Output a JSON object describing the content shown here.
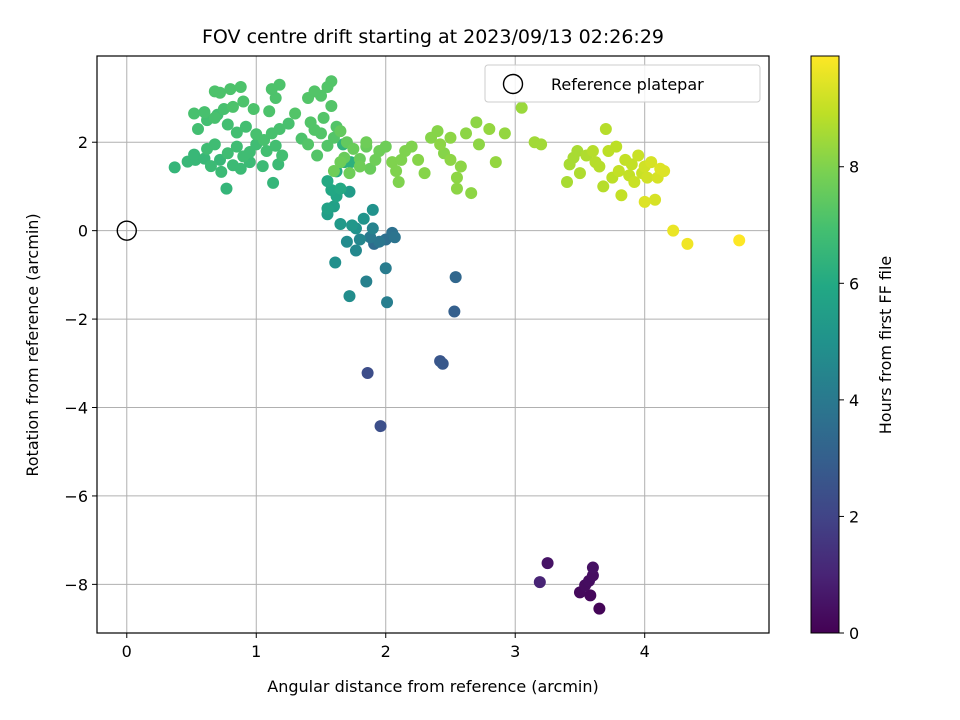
{
  "chart_data": {
    "type": "scatter",
    "title": "FOV centre drift starting at 2023/09/13 02:26:29",
    "xlabel": "Angular distance from reference (arcmin)",
    "ylabel": "Rotation from reference (arcmin)",
    "xlim": [
      -0.23,
      4.96
    ],
    "ylim": [
      -9.1,
      3.95
    ],
    "xticks": [
      0,
      1,
      2,
      3,
      4
    ],
    "yticks": [
      -8,
      -6,
      -4,
      -2,
      0,
      2
    ],
    "grid": true,
    "legend": {
      "placement": "top-right",
      "entries": [
        "Reference platepar"
      ]
    },
    "reference_point": {
      "x": 0,
      "y": 0,
      "label": "Reference platepar"
    },
    "colorbar": {
      "label": "Hours from first FF file",
      "range": [
        0,
        9.9
      ],
      "ticks": [
        0,
        2,
        4,
        6,
        8
      ],
      "colormap": "viridis"
    },
    "points": [
      [
        3.65,
        -8.55,
        0.1
      ],
      [
        3.58,
        -8.25,
        0.2
      ],
      [
        3.5,
        -8.18,
        0.25
      ],
      [
        3.54,
        -8.02,
        0.3
      ],
      [
        3.57,
        -7.92,
        0.35
      ],
      [
        3.6,
        -7.8,
        0.4
      ],
      [
        3.6,
        -7.62,
        0.45
      ],
      [
        3.25,
        -7.52,
        0.5
      ],
      [
        3.19,
        -7.95,
        1.0
      ],
      [
        1.86,
        -3.22,
        2.3
      ],
      [
        1.96,
        -4.42,
        2.4
      ],
      [
        2.42,
        -2.95,
        2.6
      ],
      [
        2.44,
        -3.01,
        2.7
      ],
      [
        2.53,
        -1.83,
        3.0
      ],
      [
        2.54,
        -1.05,
        3.3
      ],
      [
        1.91,
        -0.3,
        3.5
      ],
      [
        2.0,
        -0.2,
        3.6
      ],
      [
        2.05,
        -0.05,
        3.7
      ],
      [
        2.07,
        -0.15,
        3.8
      ],
      [
        1.95,
        -0.25,
        3.9
      ],
      [
        1.88,
        -0.15,
        4.0
      ],
      [
        2.0,
        -0.85,
        4.1
      ],
      [
        2.01,
        -1.62,
        4.2
      ],
      [
        1.85,
        -1.15,
        4.3
      ],
      [
        1.9,
        0.05,
        4.4
      ],
      [
        1.8,
        -0.2,
        4.5
      ],
      [
        1.77,
        -0.45,
        4.6
      ],
      [
        1.7,
        -0.25,
        4.7
      ],
      [
        1.72,
        -1.48,
        4.8
      ],
      [
        1.61,
        -0.72,
        4.9
      ],
      [
        1.9,
        0.47,
        5.0
      ],
      [
        1.77,
        0.05,
        5.0
      ],
      [
        1.83,
        0.27,
        5.1
      ],
      [
        1.74,
        0.12,
        5.2
      ],
      [
        1.65,
        0.15,
        5.3
      ],
      [
        1.72,
        0.88,
        5.4
      ],
      [
        1.55,
        0.37,
        5.5
      ],
      [
        1.6,
        0.55,
        5.6
      ],
      [
        1.55,
        0.5,
        5.7
      ],
      [
        1.62,
        0.78,
        5.8
      ],
      [
        1.58,
        0.92,
        5.9
      ],
      [
        1.55,
        1.12,
        6.0
      ],
      [
        1.65,
        0.95,
        6.0
      ],
      [
        1.62,
        1.34,
        6.1
      ],
      [
        1.68,
        1.55,
        6.2
      ],
      [
        1.73,
        1.55,
        6.3
      ],
      [
        1.67,
        1.95,
        6.4
      ],
      [
        0.77,
        0.95,
        6.5
      ],
      [
        1.13,
        1.08,
        6.5
      ],
      [
        0.37,
        1.43,
        6.5
      ],
      [
        0.47,
        1.56,
        6.6
      ],
      [
        0.53,
        1.6,
        6.6
      ],
      [
        0.52,
        1.72,
        6.6
      ],
      [
        0.6,
        1.63,
        6.6
      ],
      [
        0.72,
        1.6,
        6.6
      ],
      [
        0.73,
        1.33,
        6.7
      ],
      [
        0.65,
        1.46,
        6.7
      ],
      [
        0.82,
        1.48,
        6.7
      ],
      [
        0.88,
        1.4,
        6.7
      ],
      [
        0.95,
        1.55,
        6.7
      ],
      [
        1.05,
        1.46,
        6.7
      ],
      [
        1.17,
        1.5,
        6.7
      ],
      [
        0.62,
        1.85,
        6.8
      ],
      [
        0.68,
        1.95,
        6.8
      ],
      [
        0.78,
        1.75,
        6.8
      ],
      [
        0.85,
        1.9,
        6.8
      ],
      [
        0.9,
        1.68,
        6.8
      ],
      [
        0.95,
        1.78,
        6.8
      ],
      [
        1.0,
        1.95,
        6.8
      ],
      [
        1.08,
        1.8,
        6.9
      ],
      [
        1.15,
        1.92,
        6.9
      ],
      [
        1.2,
        1.7,
        6.9
      ],
      [
        0.55,
        2.3,
        6.9
      ],
      [
        0.62,
        2.5,
        6.9
      ],
      [
        0.7,
        2.62,
        6.9
      ],
      [
        0.78,
        2.4,
        6.9
      ],
      [
        0.85,
        2.22,
        6.9
      ],
      [
        0.92,
        2.35,
        6.9
      ],
      [
        1.0,
        2.18,
        7.0
      ],
      [
        1.06,
        2.05,
        7.0
      ],
      [
        1.12,
        2.2,
        7.0
      ],
      [
        1.18,
        2.3,
        7.0
      ],
      [
        1.25,
        2.42,
        7.0
      ],
      [
        0.52,
        2.65,
        7.0
      ],
      [
        0.6,
        2.68,
        7.0
      ],
      [
        0.68,
        2.55,
        7.0
      ],
      [
        0.75,
        2.75,
        7.0
      ],
      [
        0.82,
        2.8,
        7.1
      ],
      [
        0.9,
        2.92,
        7.1
      ],
      [
        0.98,
        2.75,
        7.1
      ],
      [
        1.1,
        2.7,
        7.1
      ],
      [
        1.15,
        3.0,
        7.1
      ],
      [
        1.18,
        3.3,
        7.1
      ],
      [
        0.68,
        3.15,
        7.1
      ],
      [
        0.72,
        3.12,
        7.1
      ],
      [
        0.8,
        3.2,
        7.1
      ],
      [
        0.88,
        3.25,
        7.1
      ],
      [
        1.12,
        3.2,
        7.1
      ],
      [
        1.35,
        2.08,
        7.1
      ],
      [
        1.4,
        1.95,
        7.2
      ],
      [
        1.45,
        2.28,
        7.2
      ],
      [
        1.5,
        2.2,
        7.2
      ],
      [
        1.55,
        1.92,
        7.2
      ],
      [
        1.6,
        2.1,
        7.2
      ],
      [
        1.47,
        1.7,
        7.2
      ],
      [
        1.3,
        2.65,
        7.2
      ],
      [
        1.42,
        2.45,
        7.2
      ],
      [
        1.52,
        2.55,
        7.2
      ],
      [
        1.58,
        2.82,
        7.2
      ],
      [
        1.62,
        2.35,
        7.2
      ],
      [
        1.5,
        3.05,
        7.2
      ],
      [
        1.4,
        3.0,
        7.2
      ],
      [
        1.45,
        3.15,
        7.2
      ],
      [
        1.55,
        3.25,
        7.2
      ],
      [
        1.58,
        3.38,
        7.2
      ],
      [
        1.65,
        2.25,
        7.5
      ],
      [
        1.7,
        2.0,
        7.5
      ],
      [
        1.75,
        1.85,
        7.6
      ],
      [
        1.68,
        1.65,
        7.6
      ],
      [
        1.8,
        1.62,
        7.6
      ],
      [
        1.85,
        1.9,
        7.6
      ],
      [
        1.88,
        1.4,
        7.6
      ],
      [
        1.92,
        1.6,
        7.7
      ],
      [
        1.95,
        1.8,
        7.7
      ],
      [
        2.0,
        1.9,
        7.7
      ],
      [
        1.85,
        2.0,
        7.7
      ],
      [
        1.8,
        1.45,
        7.7
      ],
      [
        1.72,
        1.3,
        7.7
      ],
      [
        1.6,
        1.35,
        7.7
      ],
      [
        1.65,
        1.55,
        7.7
      ],
      [
        2.05,
        1.55,
        8.0
      ],
      [
        2.08,
        1.35,
        8.0
      ],
      [
        2.1,
        1.1,
        8.0
      ],
      [
        2.12,
        1.6,
        8.0
      ],
      [
        2.15,
        1.8,
        8.0
      ],
      [
        2.2,
        1.9,
        8.0
      ],
      [
        2.25,
        1.6,
        8.1
      ],
      [
        2.3,
        1.3,
        8.1
      ],
      [
        2.35,
        2.1,
        8.1
      ],
      [
        2.4,
        2.25,
        8.1
      ],
      [
        2.45,
        1.75,
        8.1
      ],
      [
        2.5,
        1.6,
        8.2
      ],
      [
        2.55,
        1.2,
        8.2
      ],
      [
        2.55,
        0.95,
        8.2
      ],
      [
        2.58,
        1.45,
        8.2
      ],
      [
        2.42,
        1.95,
        8.2
      ],
      [
        2.5,
        2.1,
        8.2
      ],
      [
        2.62,
        2.2,
        8.2
      ],
      [
        2.66,
        0.85,
        8.2
      ],
      [
        2.72,
        1.95,
        8.2
      ],
      [
        2.7,
        2.45,
        8.2
      ],
      [
        2.8,
        2.3,
        8.3
      ],
      [
        2.85,
        1.55,
        8.3
      ],
      [
        2.92,
        2.2,
        8.3
      ],
      [
        3.05,
        2.78,
        8.4
      ],
      [
        3.15,
        2.0,
        8.5
      ],
      [
        3.2,
        1.95,
        8.5
      ],
      [
        3.4,
        1.1,
        8.6
      ],
      [
        3.42,
        1.5,
        8.6
      ],
      [
        3.45,
        1.65,
        8.6
      ],
      [
        3.48,
        1.8,
        8.6
      ],
      [
        3.5,
        1.3,
        8.7
      ],
      [
        3.55,
        1.7,
        8.7
      ],
      [
        3.6,
        1.8,
        8.8
      ],
      [
        3.62,
        1.55,
        8.8
      ],
      [
        3.65,
        1.45,
        8.8
      ],
      [
        3.68,
        1.0,
        8.8
      ],
      [
        3.7,
        2.3,
        8.8
      ],
      [
        3.72,
        1.8,
        8.9
      ],
      [
        3.75,
        1.2,
        8.9
      ],
      [
        3.78,
        1.9,
        8.9
      ],
      [
        3.8,
        1.35,
        9.0
      ],
      [
        3.82,
        0.8,
        9.0
      ],
      [
        3.85,
        1.6,
        9.0
      ],
      [
        3.88,
        1.25,
        9.0
      ],
      [
        3.9,
        1.5,
        9.0
      ],
      [
        3.92,
        1.1,
        9.1
      ],
      [
        3.95,
        1.7,
        9.1
      ],
      [
        3.98,
        1.3,
        9.1
      ],
      [
        4.0,
        1.45,
        9.2
      ],
      [
        4.02,
        1.2,
        9.2
      ],
      [
        4.05,
        1.55,
        9.3
      ],
      [
        4.08,
        0.7,
        9.3
      ],
      [
        4.1,
        1.2,
        9.3
      ],
      [
        4.12,
        1.4,
        9.4
      ],
      [
        4.15,
        1.35,
        9.4
      ],
      [
        4.0,
        0.65,
        9.4
      ],
      [
        4.22,
        0.0,
        9.6
      ],
      [
        4.33,
        -0.3,
        9.7
      ],
      [
        4.73,
        -0.22,
        9.9
      ]
    ]
  }
}
